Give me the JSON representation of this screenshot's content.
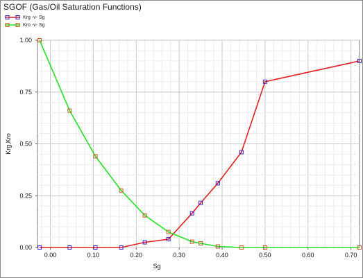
{
  "chart_data": {
    "type": "line",
    "title": "SGOF (Gas/Oil Saturation Functions)",
    "xlabel": "Sg",
    "ylabel": "Krg,Kro",
    "xlim": [
      -0.03,
      0.72
    ],
    "ylim": [
      0,
      1
    ],
    "x_ticks": [
      "0.00",
      "0.10",
      "0.20",
      "0.30",
      "0.40",
      "0.50",
      "0.60",
      "0.70"
    ],
    "x_tick_values": [
      0.0,
      0.1,
      0.2,
      0.3,
      0.4,
      0.5,
      0.6,
      0.7
    ],
    "y_ticks": [
      "0.00",
      "0.25",
      "0.50",
      "0.75",
      "1.00"
    ],
    "y_tick_values": [
      0.0,
      0.25,
      0.5,
      0.75,
      1.0
    ],
    "grid": true,
    "legend_position": "top-left",
    "series": [
      {
        "name": "Krg -v- Sg",
        "line_color": "#e02020",
        "marker_color": "#3a22c8",
        "x": [
          -0.025,
          0.045,
          0.105,
          0.165,
          0.22,
          0.275,
          0.33,
          0.35,
          0.39,
          0.445,
          0.5,
          0.72
        ],
        "y": [
          0.0,
          0.0,
          0.0,
          0.0,
          0.025,
          0.04,
          0.165,
          0.215,
          0.31,
          0.46,
          0.8,
          0.9
        ]
      },
      {
        "name": "Kro -v- Sg",
        "line_color": "#22e022",
        "marker_color": "#c85a22",
        "x": [
          -0.025,
          0.045,
          0.105,
          0.165,
          0.22,
          0.275,
          0.33,
          0.35,
          0.39,
          0.445,
          0.5,
          0.72
        ],
        "y": [
          1.0,
          0.66,
          0.44,
          0.275,
          0.155,
          0.075,
          0.028,
          0.02,
          0.005,
          0.0,
          0.0,
          0.0
        ]
      }
    ]
  }
}
